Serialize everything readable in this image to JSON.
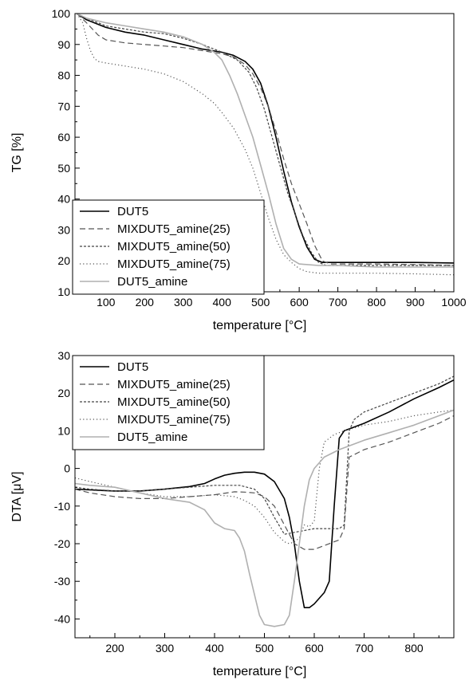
{
  "colors": {
    "black": "#000000",
    "gray": "#b0b0b0"
  },
  "chart_data": [
    {
      "type": "line",
      "xlabel": "temperature [°C]",
      "ylabel": "TG [%]",
      "xlim": [
        20,
        1000
      ],
      "ylim": [
        10,
        100
      ],
      "xticks": [
        100,
        200,
        300,
        400,
        500,
        600,
        700,
        800,
        900,
        1000
      ],
      "yticks": [
        10,
        20,
        30,
        40,
        50,
        60,
        70,
        80,
        90,
        100
      ],
      "grid": false,
      "legend_position": "bottom-left",
      "series": [
        {
          "name": "DUT5",
          "style": "solid",
          "color": "#000000",
          "x": [
            25,
            50,
            100,
            150,
            200,
            250,
            300,
            350,
            400,
            430,
            460,
            480,
            500,
            520,
            540,
            560,
            580,
            600,
            620,
            640,
            660,
            700,
            800,
            900,
            1000
          ],
          "y": [
            100,
            98,
            95.5,
            94,
            93,
            91.5,
            90,
            88.5,
            87.5,
            86.5,
            84.5,
            82,
            77.5,
            70,
            60,
            49,
            39,
            31,
            24.5,
            20.5,
            19.5,
            19.5,
            19.5,
            19.5,
            19.3
          ]
        },
        {
          "name": "MIXDUT5_amine(25)",
          "style": "dashed",
          "color": "#555555",
          "x": [
            25,
            50,
            80,
            100,
            150,
            200,
            250,
            300,
            350,
            400,
            430,
            460,
            480,
            500,
            520,
            540,
            560,
            580,
            600,
            620,
            640,
            660,
            680,
            700,
            800,
            900,
            1000
          ],
          "y": [
            100,
            97,
            93,
            91.5,
            90.5,
            90,
            89.5,
            89,
            88,
            87,
            86,
            83.5,
            80.5,
            76,
            70,
            62,
            53,
            45,
            38.5,
            32,
            25,
            20,
            19,
            19,
            19,
            18.8,
            18.5
          ]
        },
        {
          "name": "MIXDUT5_amine(50)",
          "style": "dashdot",
          "color": "#444444",
          "x": [
            25,
            50,
            100,
            150,
            200,
            250,
            300,
            350,
            400,
            440,
            470,
            490,
            510,
            530,
            550,
            570,
            590,
            610,
            630,
            650,
            670,
            700,
            800,
            900,
            1000
          ],
          "y": [
            100,
            98.5,
            96,
            95,
            94,
            93.5,
            92,
            90,
            87.5,
            85,
            81,
            76,
            69,
            60,
            51,
            42,
            35,
            28,
            23,
            19.5,
            18.5,
            18.5,
            18.5,
            18.5,
            18.5
          ]
        },
        {
          "name": "MIXDUT5_amine(75)",
          "style": "dotted",
          "color": "#555555",
          "x": [
            25,
            40,
            50,
            60,
            70,
            80,
            100,
            150,
            200,
            250,
            300,
            350,
            380,
            400,
            430,
            460,
            480,
            500,
            520,
            540,
            560,
            580,
            600,
            620,
            650,
            700,
            800,
            900,
            1000
          ],
          "y": [
            100,
            97,
            92,
            88,
            85.5,
            84.5,
            84,
            83,
            82,
            80.5,
            78,
            74,
            71,
            68,
            63,
            56,
            50,
            42,
            34,
            27,
            22,
            19.5,
            17.5,
            16.5,
            16,
            16,
            16,
            15.8,
            15.5
          ]
        },
        {
          "name": "DUT5_amine",
          "style": "solid",
          "color": "#b0b0b0",
          "x": [
            25,
            50,
            100,
            150,
            200,
            250,
            300,
            350,
            380,
            400,
            420,
            440,
            460,
            480,
            500,
            520,
            540,
            560,
            580,
            600,
            650,
            700,
            800,
            900,
            1000
          ],
          "y": [
            100,
            98.5,
            97,
            96,
            95,
            94,
            92.5,
            90,
            87.5,
            85,
            80,
            74,
            67,
            60,
            51,
            42,
            32,
            24,
            20.5,
            19,
            18.5,
            18.5,
            18,
            18,
            18
          ]
        }
      ]
    },
    {
      "type": "line",
      "xlabel": "temperature [°C]",
      "ylabel": "DTA [μV]",
      "xlim": [
        120,
        880
      ],
      "ylim": [
        -45,
        30
      ],
      "xticks": [
        200,
        300,
        400,
        500,
        600,
        700,
        800
      ],
      "yticks": [
        -40,
        -30,
        -20,
        -10,
        0,
        10,
        20,
        30
      ],
      "grid": false,
      "legend_position": "top-left",
      "series": [
        {
          "name": "DUT5",
          "style": "solid",
          "color": "#000000",
          "x": [
            120,
            150,
            200,
            250,
            300,
            350,
            380,
            400,
            420,
            440,
            460,
            480,
            500,
            520,
            540,
            550,
            560,
            570,
            580,
            590,
            600,
            620,
            630,
            640,
            650,
            660,
            700,
            750,
            800,
            850,
            880
          ],
          "y": [
            -5.5,
            -5.7,
            -6,
            -6,
            -5.5,
            -4.8,
            -4,
            -2.8,
            -1.8,
            -1.3,
            -1,
            -1,
            -1.5,
            -3.5,
            -8,
            -13,
            -20,
            -30,
            -37,
            -37,
            -36,
            -33,
            -30,
            -10,
            8,
            10,
            12,
            15,
            18.5,
            21.5,
            23.5
          ]
        },
        {
          "name": "MIXDUT5_amine(25)",
          "style": "dashed",
          "color": "#555555",
          "x": [
            120,
            150,
            200,
            250,
            300,
            350,
            400,
            440,
            460,
            480,
            500,
            520,
            540,
            560,
            580,
            600,
            620,
            640,
            650,
            660,
            670,
            700,
            750,
            800,
            850,
            880
          ],
          "y": [
            -5.5,
            -6.5,
            -7.5,
            -8,
            -8,
            -7.5,
            -7,
            -6.2,
            -6.3,
            -6.5,
            -7.5,
            -10,
            -15,
            -20,
            -21.5,
            -21.5,
            -20.5,
            -19.5,
            -19,
            -16,
            3,
            5,
            7,
            9.5,
            12,
            14
          ]
        },
        {
          "name": "MIXDUT5_amine(50)",
          "style": "dashdot",
          "color": "#444444",
          "x": [
            120,
            150,
            200,
            250,
            300,
            350,
            400,
            450,
            480,
            500,
            520,
            540,
            560,
            580,
            600,
            620,
            640,
            650,
            660,
            670,
            680,
            700,
            750,
            800,
            850,
            880
          ],
          "y": [
            -5,
            -5.5,
            -6,
            -6,
            -5.5,
            -5,
            -4.5,
            -4.5,
            -5.5,
            -8,
            -13,
            -17.5,
            -17,
            -16.5,
            -16,
            -16,
            -16,
            -16,
            -15,
            10,
            13,
            15,
            17.5,
            20,
            22.5,
            24.5
          ]
        },
        {
          "name": "MIXDUT5_amine(75)",
          "style": "dotted",
          "color": "#555555",
          "x": [
            120,
            150,
            200,
            250,
            300,
            350,
            400,
            440,
            460,
            480,
            500,
            520,
            540,
            550,
            560,
            570,
            580,
            590,
            600,
            610,
            620,
            640,
            660,
            700,
            750,
            800,
            850,
            880
          ],
          "y": [
            -2.5,
            -3.5,
            -5,
            -6.5,
            -7.5,
            -7.5,
            -7,
            -7.5,
            -8.5,
            -10,
            -13,
            -17,
            -19.5,
            -20,
            -19.5,
            -18.5,
            -15,
            -15.5,
            -14,
            0,
            7,
            9,
            10,
            11.5,
            12.5,
            14,
            15,
            15.5
          ]
        },
        {
          "name": "DUT5_amine",
          "style": "solid",
          "color": "#b0b0b0",
          "x": [
            120,
            150,
            200,
            250,
            300,
            350,
            380,
            400,
            420,
            440,
            450,
            460,
            470,
            480,
            490,
            500,
            520,
            540,
            550,
            560,
            570,
            580,
            590,
            600,
            620,
            650,
            700,
            750,
            800,
            850,
            880
          ],
          "y": [
            -4,
            -4.5,
            -5,
            -6.5,
            -8,
            -9,
            -11,
            -14.5,
            -16,
            -16.5,
            -18.5,
            -22,
            -28,
            -33.5,
            -39,
            -41.5,
            -42,
            -41.5,
            -39,
            -30,
            -20,
            -10,
            -3,
            0,
            3,
            5,
            7.5,
            9.5,
            11.5,
            14,
            15.5
          ]
        }
      ]
    }
  ]
}
